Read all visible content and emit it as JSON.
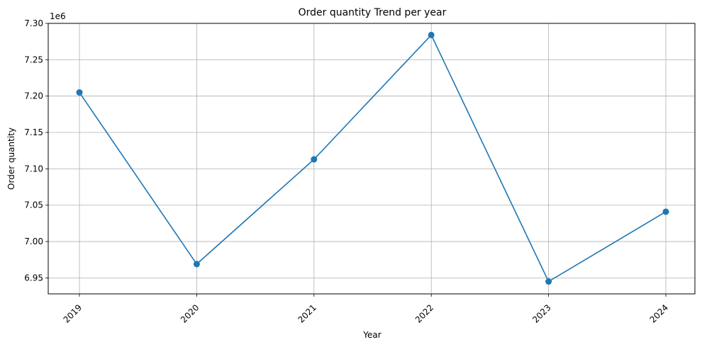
{
  "chart_data": {
    "type": "line",
    "title": "Order quantity Trend per year",
    "xlabel": "Year",
    "ylabel": "Order quantity",
    "y_offset_label": "1e6",
    "x": [
      "2019",
      "2020",
      "2021",
      "2022",
      "2023",
      "2024"
    ],
    "y_tick_labels": [
      "6.95",
      "7.00",
      "7.05",
      "7.10",
      "7.15",
      "7.20",
      "7.25",
      "7.30"
    ],
    "y_ticks": [
      6950000,
      7000000,
      7050000,
      7100000,
      7150000,
      7200000,
      7250000,
      7300000
    ],
    "ylim": [
      6928000,
      7300000
    ],
    "grid": true,
    "series": [
      {
        "values": [
          7205000,
          6969000,
          7113000,
          7284000,
          6945000,
          7041000
        ],
        "color": "#1f77b4",
        "marker": "circle"
      }
    ]
  }
}
